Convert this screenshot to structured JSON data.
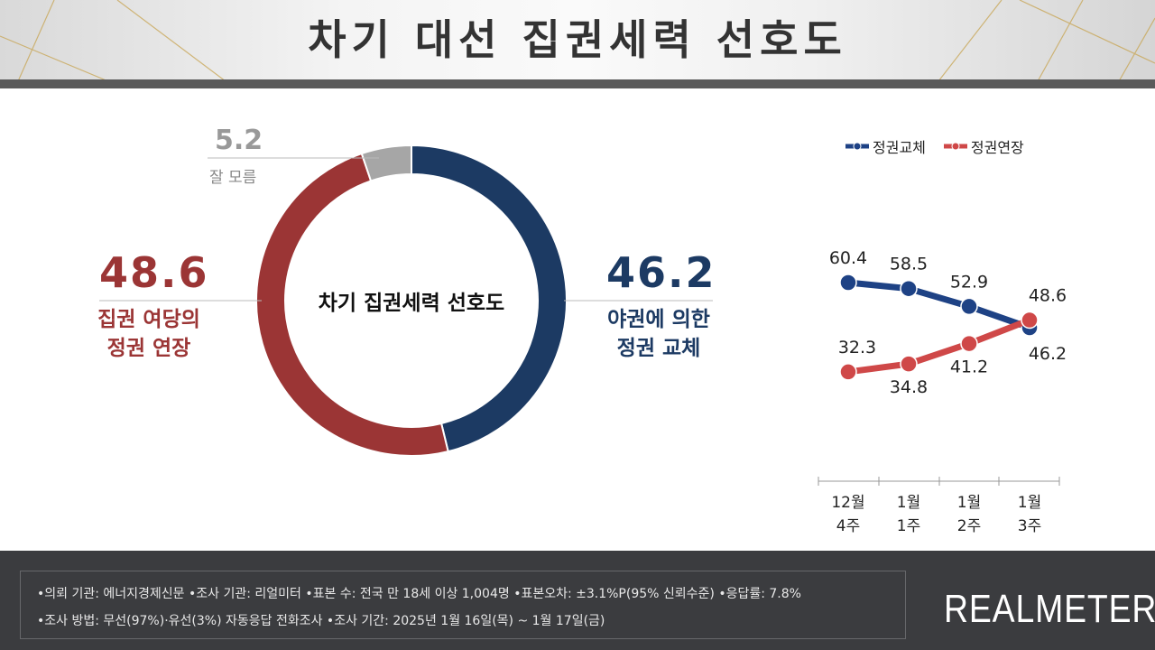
{
  "header": {
    "title": "차기 대선 집권세력 선호도"
  },
  "donut": {
    "center_label": "차기 집권세력 선호도",
    "slices": [
      {
        "label_lines": [
          "야권에 의한",
          "정권 교체"
        ],
        "value": 46.2,
        "display": "46.2",
        "color": "#1c3a63"
      },
      {
        "label_lines": [
          "집권 여당의",
          "정권 연장"
        ],
        "value": 48.6,
        "display": "48.6",
        "color": "#9b3535"
      },
      {
        "label_lines": [
          "잘 모름"
        ],
        "value": 5.2,
        "display": "5.2",
        "color": "#a6a6a6"
      }
    ]
  },
  "chart_data": {
    "type": "line",
    "categories": [
      [
        "12월",
        "4주"
      ],
      [
        "1월",
        "1주"
      ],
      [
        "1월",
        "2주"
      ],
      [
        "1월",
        "3주"
      ]
    ],
    "series": [
      {
        "name": "정권교체",
        "values": [
          60.4,
          58.5,
          52.9,
          46.2
        ],
        "color": "#1e4285"
      },
      {
        "name": "정권연장",
        "values": [
          32.3,
          34.8,
          41.2,
          48.6
        ],
        "color": "#cf4848"
      }
    ],
    "legend": "top",
    "grid": false
  },
  "footer": {
    "line1": "•의뢰 기관: 에너지경제신문 •조사 기관: 리얼미터 •표본 수: 전국 만 18세 이상 1,004명 •표본오차: ±3.1%P(95% 신뢰수준) •응답률: 7.8%",
    "line2": "•조사 방법: 무선(97%)·유선(3%) 자동응답 전화조사 •조사 기간: 2025년 1월 16일(목) ~ 1월 17일(금)",
    "brand": "REALMETER"
  }
}
